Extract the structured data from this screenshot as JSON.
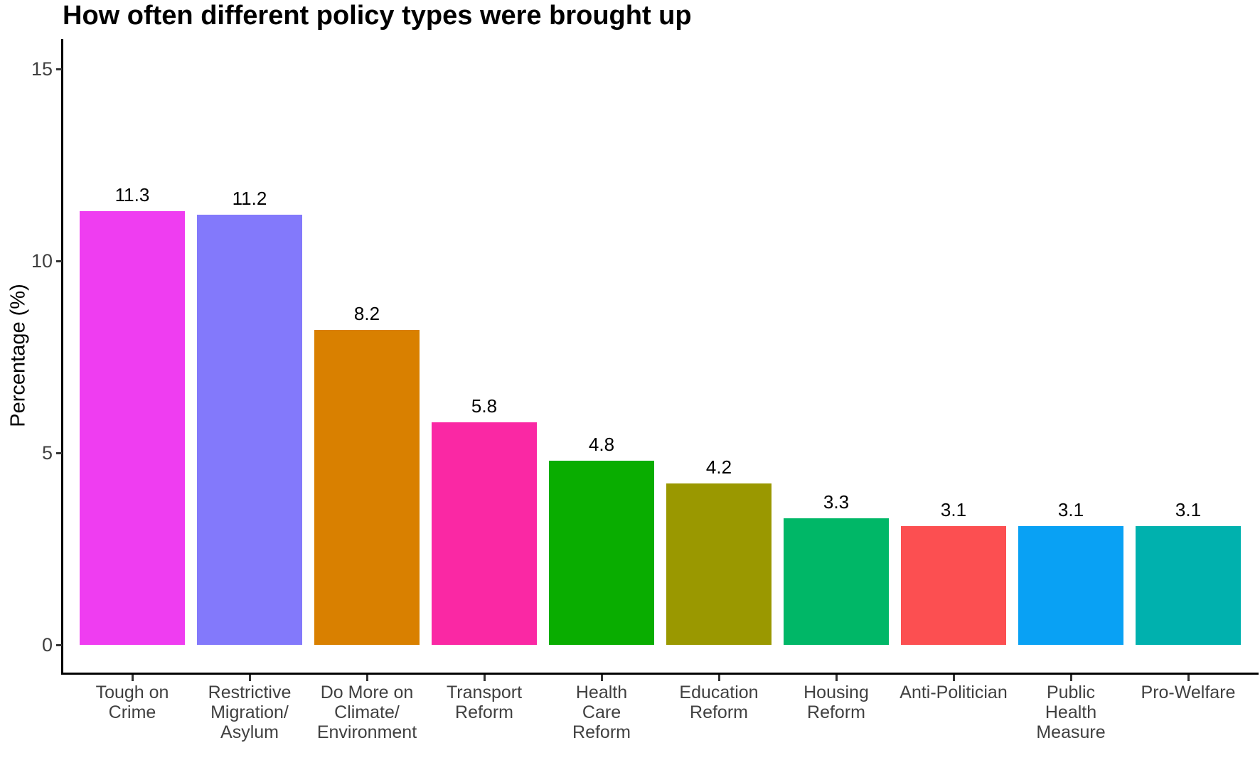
{
  "chart_data": {
    "type": "bar",
    "title": "How often different policy types were brought up",
    "xlabel": "",
    "ylabel": "Percentage (%)",
    "ylim": [
      0,
      15.6
    ],
    "y_ticks": [
      0,
      5,
      10,
      15
    ],
    "grid": false,
    "legend": false,
    "categories": [
      "Tough on Crime",
      "Restrictive Migration/Asylum",
      "Do More on Climate/Environment",
      "Transport Reform",
      "Health Care Reform",
      "Education Reform",
      "Housing Reform",
      "Anti-Politician",
      "Public Health Measure",
      "Pro-Welfare"
    ],
    "category_label_lines": [
      [
        "Tough on",
        "Crime"
      ],
      [
        "Restrictive",
        "Migration/",
        "Asylum"
      ],
      [
        "Do More on",
        "Climate/",
        "Environment"
      ],
      [
        "Transport",
        "Reform"
      ],
      [
        "Health",
        "Care",
        "Reform"
      ],
      [
        "Education",
        "Reform"
      ],
      [
        "Housing",
        "Reform"
      ],
      [
        "Anti-Politician"
      ],
      [
        "Public",
        "Health",
        "Measure"
      ],
      [
        "Pro-Welfare"
      ]
    ],
    "values": [
      11.3,
      11.2,
      8.2,
      5.8,
      4.8,
      4.2,
      3.3,
      3.1,
      3.1,
      3.1
    ],
    "value_labels": [
      "11.3",
      "11.2",
      "8.2",
      "5.8",
      "4.8",
      "4.2",
      "3.3",
      "3.1",
      "3.1",
      "3.1"
    ],
    "bar_colors": [
      "#EF3DF1",
      "#8379FB",
      "#D98000",
      "#FA28A4",
      "#09AD00",
      "#9A9800",
      "#00B767",
      "#FC4F51",
      "#09A1F4",
      "#00B1AE"
    ],
    "axis_color": "#000000",
    "tick_label_color": "#404040",
    "title_color": "#000000"
  }
}
